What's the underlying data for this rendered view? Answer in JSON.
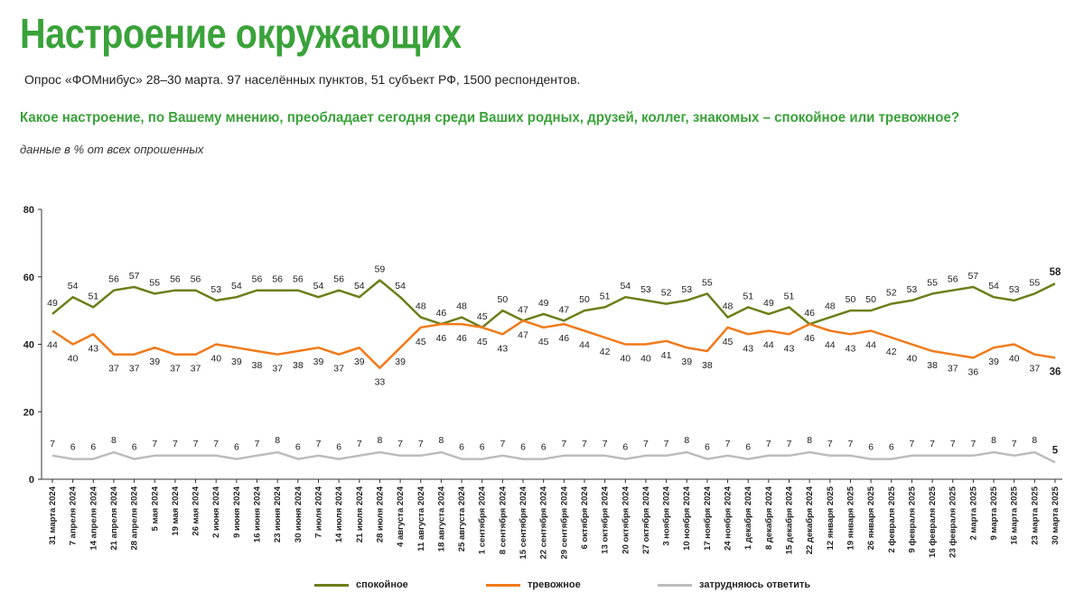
{
  "header": {
    "title": "Настроение окружающих",
    "subtitle": "Опрос «ФОМнибус» 28–30 марта. 97 населённых пунктов, 51 субъект РФ, 1500 респондентов.",
    "question": "Какое настроение, по Вашему мнению, преобладает сегодня среди Ваших родных, друзей, коллег, знакомых – спокойное или тревожное?",
    "note": "данные в % от всех опрошенных"
  },
  "chart_data": {
    "type": "line",
    "title": "Настроение окружающих",
    "xlabel": "",
    "ylabel": "",
    "ylim": [
      0,
      80
    ],
    "yticks": [
      0,
      20,
      40,
      60,
      80
    ],
    "grid": false,
    "legend_position": "bottom",
    "categories": [
      "31 марта 2024",
      "7 апреля 2024",
      "14 апреля 2024",
      "21 апреля 2024",
      "28 апреля 2024",
      "5 мая 2024",
      "19 мая 2024",
      "26 мая 2024",
      "2 июня 2024",
      "9 июня 2024",
      "16 июня 2024",
      "23 июня 2024",
      "30 июня 2024",
      "7 июля 2024",
      "14 июля 2024",
      "21 июля 2024",
      "28 июля 2024",
      "4 августа 2024",
      "11 августа 2024",
      "18 августа 2024",
      "25 августа 2024",
      "1 сентября 2024",
      "8 сентября 2024",
      "15 сентября 2024",
      "22 сентября 2024",
      "29 сентября 2024",
      "6 октября 2024",
      "13 октября 2024",
      "20 октября 2024",
      "27 октября 2024",
      "3 ноября 2024",
      "10 ноября 2024",
      "17 ноября 2024",
      "24 ноября 2024",
      "1 декабря 2024",
      "8 декабря 2024",
      "15 декабря 2024",
      "22 декабря 2024",
      "12 января 2025",
      "19 января 2025",
      "26 января 2025",
      "2 февраля 2025",
      "9 февраля 2025",
      "16 февраля 2025",
      "23 февраля 2025",
      "2 марта 2025",
      "9 марта 2025",
      "16 марта 2025",
      "23 марта 2025",
      "30 марта 2025"
    ],
    "series": [
      {
        "name": "спокойное",
        "color": "#6b7f1a",
        "values": [
          49,
          54,
          51,
          56,
          57,
          55,
          56,
          56,
          53,
          54,
          56,
          56,
          56,
          54,
          56,
          54,
          59,
          54,
          48,
          46,
          48,
          45,
          50,
          47,
          49,
          47,
          50,
          51,
          54,
          53,
          52,
          53,
          55,
          48,
          51,
          49,
          51,
          46,
          48,
          50,
          50,
          52,
          53,
          55,
          56,
          57,
          54,
          53,
          55,
          58
        ]
      },
      {
        "name": "тревожное",
        "color": "#f07a1a",
        "values": [
          44,
          40,
          43,
          37,
          37,
          39,
          37,
          37,
          40,
          39,
          38,
          37,
          38,
          39,
          37,
          39,
          33,
          39,
          45,
          46,
          46,
          45,
          43,
          47,
          45,
          46,
          44,
          42,
          40,
          40,
          41,
          39,
          38,
          45,
          43,
          44,
          43,
          46,
          44,
          43,
          44,
          42,
          40,
          38,
          37,
          36,
          39,
          40,
          37,
          36
        ]
      },
      {
        "name": "затрудняюсь ответить",
        "color": "#bcbcbc",
        "values": [
          7,
          6,
          6,
          8,
          6,
          7,
          7,
          7,
          7,
          6,
          7,
          8,
          6,
          7,
          6,
          7,
          8,
          7,
          7,
          8,
          6,
          6,
          7,
          6,
          6,
          7,
          7,
          7,
          6,
          7,
          7,
          8,
          6,
          7,
          6,
          7,
          7,
          8,
          7,
          7,
          6,
          6,
          7,
          7,
          7,
          7,
          8,
          7,
          8,
          5
        ]
      }
    ]
  },
  "legend": {
    "items": [
      {
        "label": "спокойное",
        "color": "#6b7f1a"
      },
      {
        "label": "тревожное",
        "color": "#f07a1a"
      },
      {
        "label": "затрудняюсь ответить",
        "color": "#bcbcbc"
      }
    ]
  }
}
